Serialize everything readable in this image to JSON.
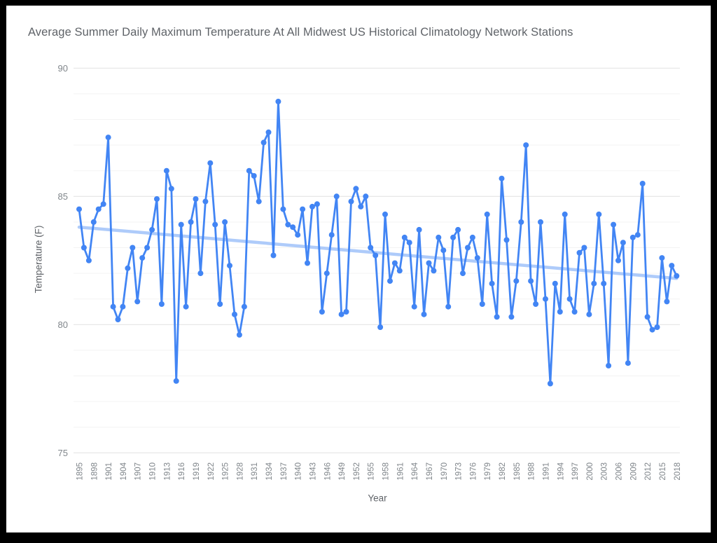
{
  "window": {
    "background": "#ffffff",
    "frame_color": "#000000"
  },
  "chart_data": {
    "type": "line",
    "title": "Average Summer Daily Maximum Temperature At All Midwest US Historical Climatology Network Stations",
    "xlabel": "Year",
    "ylabel": "Temperature (F)",
    "x_start": 1895,
    "x_end": 2018,
    "x_tick_step": 3,
    "x_tick_labels": [
      "1895",
      "1898",
      "1901",
      "1904",
      "1907",
      "1910",
      "1913",
      "1916",
      "1919",
      "1922",
      "1925",
      "1928",
      "1931",
      "1934",
      "1937",
      "1940",
      "1943",
      "1946",
      "1949",
      "1952",
      "1955",
      "1958",
      "1961",
      "1964",
      "1967",
      "1970",
      "1973",
      "1976",
      "1979",
      "1982",
      "1985",
      "1988",
      "1991",
      "1994",
      "1997",
      "2000",
      "2003",
      "2006",
      "2009",
      "2012",
      "2015",
      "2018"
    ],
    "ylim": [
      75,
      90
    ],
    "y_ticks": [
      90,
      85,
      80,
      75
    ],
    "grid": {
      "major": true,
      "minor": true
    },
    "legend": "none",
    "colors": {
      "series": "#4285f4",
      "trendline": "#aecbfa",
      "major_gridline": "#e1e1e1",
      "minor_gridline": "#f3f3f3",
      "tick_label": "#80868b",
      "axis_title": "#5f6368",
      "title": "#5f6368"
    },
    "series": [
      {
        "name": "Average summer daily maximum temperature (F)",
        "color": "#4285f4",
        "years_from": 1895,
        "values": [
          84.5,
          83.0,
          82.5,
          84.0,
          84.5,
          84.7,
          87.3,
          80.7,
          80.2,
          80.7,
          82.2,
          83.0,
          80.9,
          82.6,
          83.0,
          83.7,
          84.9,
          80.8,
          86.0,
          85.3,
          77.8,
          83.9,
          80.7,
          84.0,
          84.9,
          82.0,
          84.8,
          86.3,
          83.9,
          80.8,
          84.0,
          82.3,
          80.4,
          79.6,
          80.7,
          86.0,
          85.8,
          84.8,
          87.1,
          87.5,
          82.7,
          88.7,
          84.5,
          83.9,
          83.8,
          83.5,
          84.5,
          82.4,
          84.6,
          84.7,
          80.5,
          82.0,
          83.5,
          85.0,
          80.4,
          80.5,
          84.8,
          85.3,
          84.6,
          85.0,
          83.0,
          82.7,
          79.9,
          84.3,
          81.7,
          82.4,
          82.1,
          83.4,
          83.2,
          80.7,
          83.7,
          80.4,
          82.4,
          82.1,
          83.4,
          82.9,
          80.7,
          83.4,
          83.7,
          82.0,
          83.0,
          83.4,
          82.6,
          80.8,
          84.3,
          81.6,
          80.3,
          85.7,
          83.3,
          80.3,
          81.7,
          84.0,
          87.0,
          81.7,
          80.8,
          84.0,
          81.0,
          77.7,
          81.6,
          80.5,
          84.3,
          81.0,
          80.5,
          82.8,
          83.0,
          80.4,
          81.6,
          84.3,
          81.6,
          78.4,
          83.9,
          82.5,
          83.2,
          78.5,
          83.4,
          83.5,
          85.5,
          80.3,
          79.8,
          79.9,
          82.6,
          80.9,
          82.3,
          81.9
        ]
      }
    ],
    "trendline": {
      "x1": 1895,
      "y1": 83.8,
      "x2": 2018,
      "y2": 81.8
    }
  }
}
